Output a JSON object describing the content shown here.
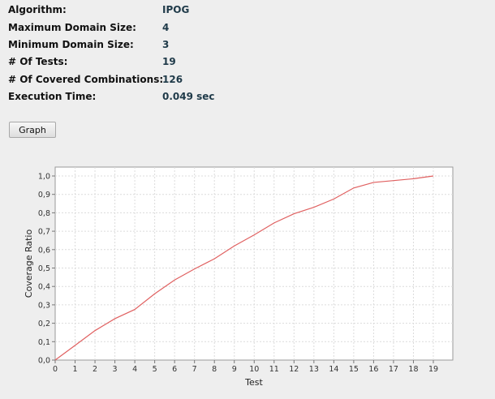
{
  "info": {
    "algorithm_label": "Algorithm:",
    "algorithm_value": "IPOG",
    "max_domain_label": "Maximum Domain Size:",
    "max_domain_value": "4",
    "min_domain_label": "Minimum Domain Size:",
    "min_domain_value": "3",
    "tests_label": "# Of Tests:",
    "tests_value": "19",
    "covered_label": "# Of Covered Combinations:",
    "covered_value": "126",
    "exec_label": "Execution Time:",
    "exec_value": "0.049 sec"
  },
  "graph_button": {
    "label": "Graph"
  },
  "chart_data": {
    "type": "line",
    "xlabel": "Test",
    "ylabel": "Coverage Ratio",
    "xlim": [
      0,
      19
    ],
    "ylim": [
      0,
      1.0
    ],
    "x_ticks": [
      "0",
      "1",
      "2",
      "3",
      "4",
      "5",
      "6",
      "7",
      "8",
      "9",
      "10",
      "11",
      "12",
      "13",
      "14",
      "15",
      "16",
      "17",
      "18",
      "19"
    ],
    "y_ticks": [
      "0,0",
      "0,1",
      "0,2",
      "0,3",
      "0,4",
      "0,5",
      "0,6",
      "0,7",
      "0,8",
      "0,9",
      "1,0"
    ],
    "grid": true,
    "series": [
      {
        "color": "#e06060",
        "x": [
          0,
          1,
          2,
          3,
          4,
          5,
          6,
          7,
          8,
          9,
          10,
          11,
          12,
          13,
          14,
          15,
          16,
          17,
          18,
          19
        ],
        "y": [
          0.0,
          0.08,
          0.16,
          0.225,
          0.275,
          0.36,
          0.435,
          0.495,
          0.55,
          0.62,
          0.68,
          0.745,
          0.795,
          0.83,
          0.875,
          0.935,
          0.965,
          0.975,
          0.985,
          1.0
        ]
      }
    ]
  }
}
